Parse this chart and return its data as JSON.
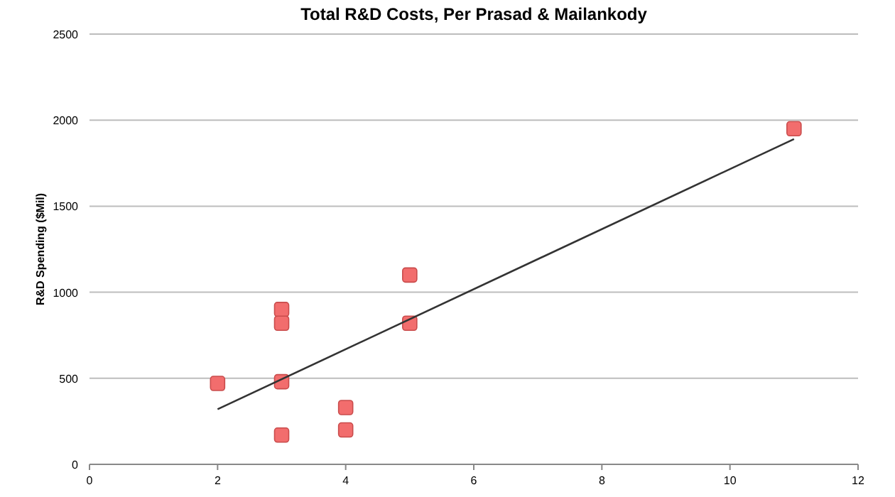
{
  "chart_data": {
    "type": "scatter",
    "title": "Total R&D Costs, Per Prasad & Mailankody",
    "ylabel": "R&D Spending ($Mil)",
    "xlim": [
      0,
      12
    ],
    "xticks": [
      0,
      2,
      4,
      6,
      8,
      10,
      12
    ],
    "ylim": [
      0,
      2500
    ],
    "yticks": [
      0,
      500,
      1000,
      1500,
      2000,
      2500
    ],
    "grid": "y",
    "marker": "square",
    "series": [
      {
        "color": "#f26d6d",
        "x": [
          2,
          3,
          3,
          3,
          3,
          4,
          4,
          5,
          5,
          11
        ],
        "values": [
          470,
          900,
          820,
          480,
          170,
          330,
          200,
          1100,
          820,
          1950
        ]
      },
      {
        "type": "line",
        "color": "#333333",
        "marker": "none",
        "line_style": "solid",
        "x": [
          2,
          11
        ],
        "values": [
          320,
          1890
        ]
      }
    ]
  }
}
